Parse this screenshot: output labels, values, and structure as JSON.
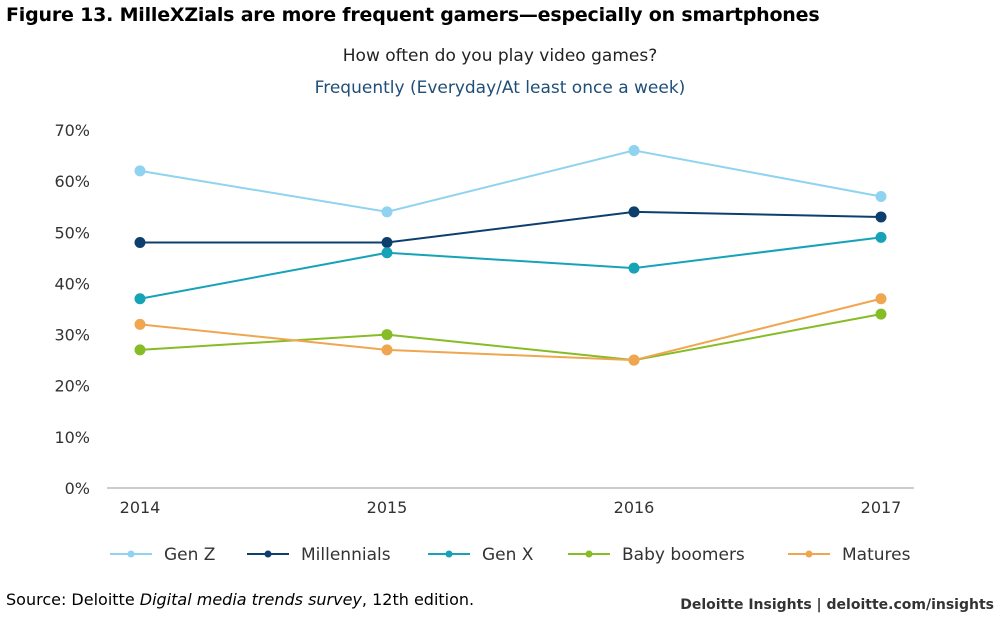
{
  "figure_title": "Figure 13. MilleXZials are more frequent gamers—especially on smartphones",
  "source": {
    "prefix": "Source: Deloitte ",
    "italic": "Digital media trends survey",
    "suffix": ", 12th edition."
  },
  "credit": "Deloitte Insights | deloitte.com/insights",
  "chart_data": {
    "type": "line",
    "title": "How often do you play video games?",
    "subtitle": "Frequently (Everyday/At least once a week)",
    "xlabel": "",
    "ylabel": "",
    "categories": [
      "2014",
      "2015",
      "2016",
      "2017"
    ],
    "ylim": [
      0,
      70
    ],
    "yticks": [
      0,
      10,
      20,
      30,
      40,
      50,
      60,
      70
    ],
    "ytick_labels": [
      "0%",
      "10%",
      "20%",
      "30%",
      "40%",
      "50%",
      "60%",
      "70%"
    ],
    "grid": false,
    "legend_position": "bottom",
    "series": [
      {
        "name": "Gen Z",
        "color": "#8fd3f0",
        "values": [
          62,
          54,
          66,
          57
        ]
      },
      {
        "name": "Millennials",
        "color": "#0d3f6e",
        "values": [
          48,
          48,
          54,
          53
        ]
      },
      {
        "name": "Gen X",
        "color": "#16a3b8",
        "values": [
          37,
          46,
          43,
          49
        ]
      },
      {
        "name": "Baby boomers",
        "color": "#86bc25",
        "values": [
          27,
          30,
          25,
          34
        ]
      },
      {
        "name": "Matures",
        "color": "#f0a650",
        "values": [
          32,
          27,
          25,
          37
        ]
      }
    ]
  }
}
